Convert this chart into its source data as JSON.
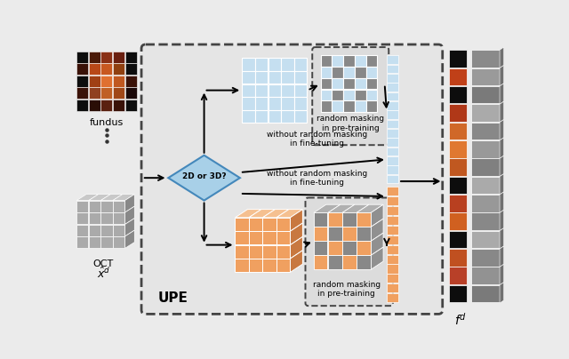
{
  "bg_color": "#ebebeb",
  "fundus_label": "fundus",
  "oct_label": "OCT",
  "xd_label": "$\\hat{x}^d$",
  "fd_label": "$f^d$",
  "upe_label": "UPE",
  "diamond_label": "2D or 3D?",
  "text_random_2d": "random masking\nin pre-training",
  "text_finetune_2d": "without random masking\nin fine-tuning",
  "text_random_3d": "random masking\nin pre-training",
  "text_finetune_3d": "without random masking\nin fine-tuning",
  "light_blue": "#c5dff0",
  "light_blue_mid": "#a8ccde",
  "orange": "#f0a060",
  "orange_top": "#f5c090",
  "orange_right": "#c87840",
  "gray_mask": "#888888",
  "gray_top": "#b0b0b0",
  "gray_right": "#909090",
  "white": "#ffffff",
  "dashed_border": "#444444",
  "inner_bg": "#e2e2e2"
}
